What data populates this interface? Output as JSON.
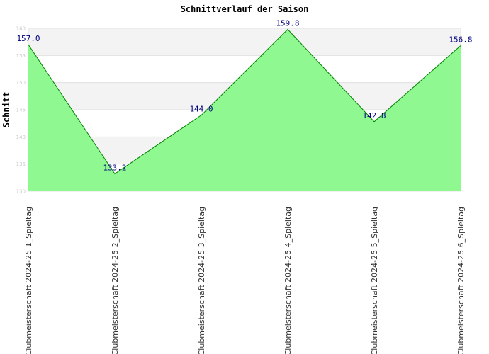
{
  "chart_data": {
    "type": "area",
    "title": "Schnittverlauf der Saison",
    "ylabel": "Schnitt",
    "xlabel": "",
    "categories": [
      "Clubmeisterschaft 2024-25   1_Spieltag",
      "Clubmeisterschaft 2024-25   2_Spieltag",
      "Clubmeisterschaft 2024-25   3_Spieltag",
      "Clubmeisterschaft 2024-25   4_Spieltag",
      "Clubmeisterschaft 2024-25   5_Spieltag",
      "Clubmeisterschaft 2024-25   6_Spieltag"
    ],
    "values": [
      157.0,
      133.2,
      144.0,
      159.8,
      142.8,
      156.8
    ],
    "value_labels": [
      "157.0",
      "133.2",
      "144.0",
      "159.8",
      "142.8",
      "156.8"
    ],
    "ylim": [
      130,
      160
    ],
    "yticks": [
      130,
      135,
      140,
      145,
      150,
      155,
      160
    ],
    "grid": true,
    "colors": {
      "fill": "#90f890",
      "line": "#008000",
      "band": "#f3f3f3",
      "grid": "#e0e0e0",
      "label": "#000080"
    }
  }
}
